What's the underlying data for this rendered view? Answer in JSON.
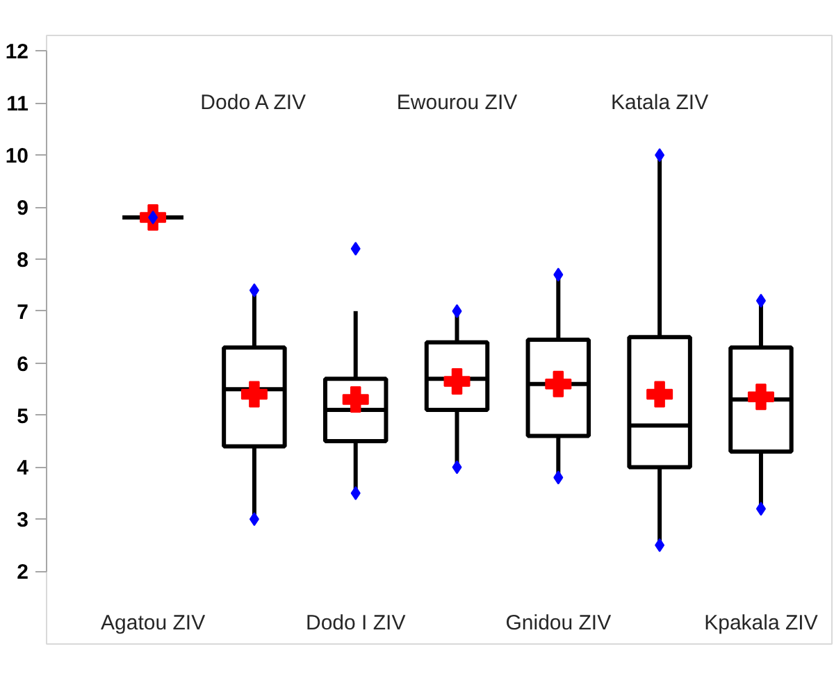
{
  "chart_data": {
    "type": "box",
    "categories": [
      "Agatou ZIV",
      "Dodo A ZIV",
      "Dodo I ZIV",
      "Ewourou ZIV",
      "Gnidou ZIV",
      "Katala ZIV",
      "Kpakala ZIV"
    ],
    "boxes": [
      {
        "low": 8.8,
        "q1": 8.8,
        "median": 8.8,
        "q3": 8.8,
        "high": 8.8
      },
      {
        "low": 3.0,
        "q1": 4.4,
        "median": 5.5,
        "q3": 6.3,
        "high": 7.4
      },
      {
        "low": 3.5,
        "q1": 4.5,
        "median": 5.1,
        "q3": 5.7,
        "high": 7.0
      },
      {
        "low": 4.0,
        "q1": 5.1,
        "median": 5.7,
        "q3": 6.4,
        "high": 7.0
      },
      {
        "low": 3.8,
        "q1": 4.6,
        "median": 5.6,
        "q3": 6.45,
        "high": 7.7
      },
      {
        "low": 2.5,
        "q1": 4.0,
        "median": 4.8,
        "q3": 6.5,
        "high": 10.0
      },
      {
        "low": 3.2,
        "q1": 4.3,
        "median": 5.3,
        "q3": 6.3,
        "high": 7.2
      }
    ],
    "series": [
      {
        "type": "scatter",
        "marker": "cross",
        "color": "#ff0000",
        "x": [
          "Agatou ZIV",
          "Dodo A ZIV",
          "Dodo I ZIV",
          "Ewourou ZIV",
          "Gnidou ZIV",
          "Katala ZIV",
          "Kpakala ZIV"
        ],
        "values": [
          8.8,
          5.4,
          5.3,
          5.65,
          5.6,
          5.4,
          5.35
        ]
      },
      {
        "type": "scatter",
        "marker": "diamond",
        "color": "#0000ff",
        "x": [
          "Dodo A ZIV",
          "Dodo A ZIV",
          "Dodo I ZIV",
          "Dodo I ZIV",
          "Ewourou ZIV",
          "Ewourou ZIV",
          "Gnidou ZIV",
          "Gnidou ZIV",
          "Katala ZIV",
          "Katala ZIV",
          "Kpakala ZIV",
          "Kpakala ZIV"
        ],
        "values": [
          3.0,
          7.4,
          3.5,
          8.2,
          4.0,
          7.0,
          3.8,
          7.7,
          2.5,
          10.0,
          3.2,
          7.2
        ]
      },
      {
        "type": "scatter",
        "marker": "diamond",
        "color": "#0000ff",
        "x": [
          "Agatou ZIV"
        ],
        "values": [
          8.8
        ]
      }
    ],
    "ylim": [
      2,
      12
    ],
    "yticks": [
      2,
      3,
      4,
      5,
      6,
      7,
      8,
      9,
      10,
      11,
      12
    ],
    "grid": false,
    "color": "#000000"
  }
}
